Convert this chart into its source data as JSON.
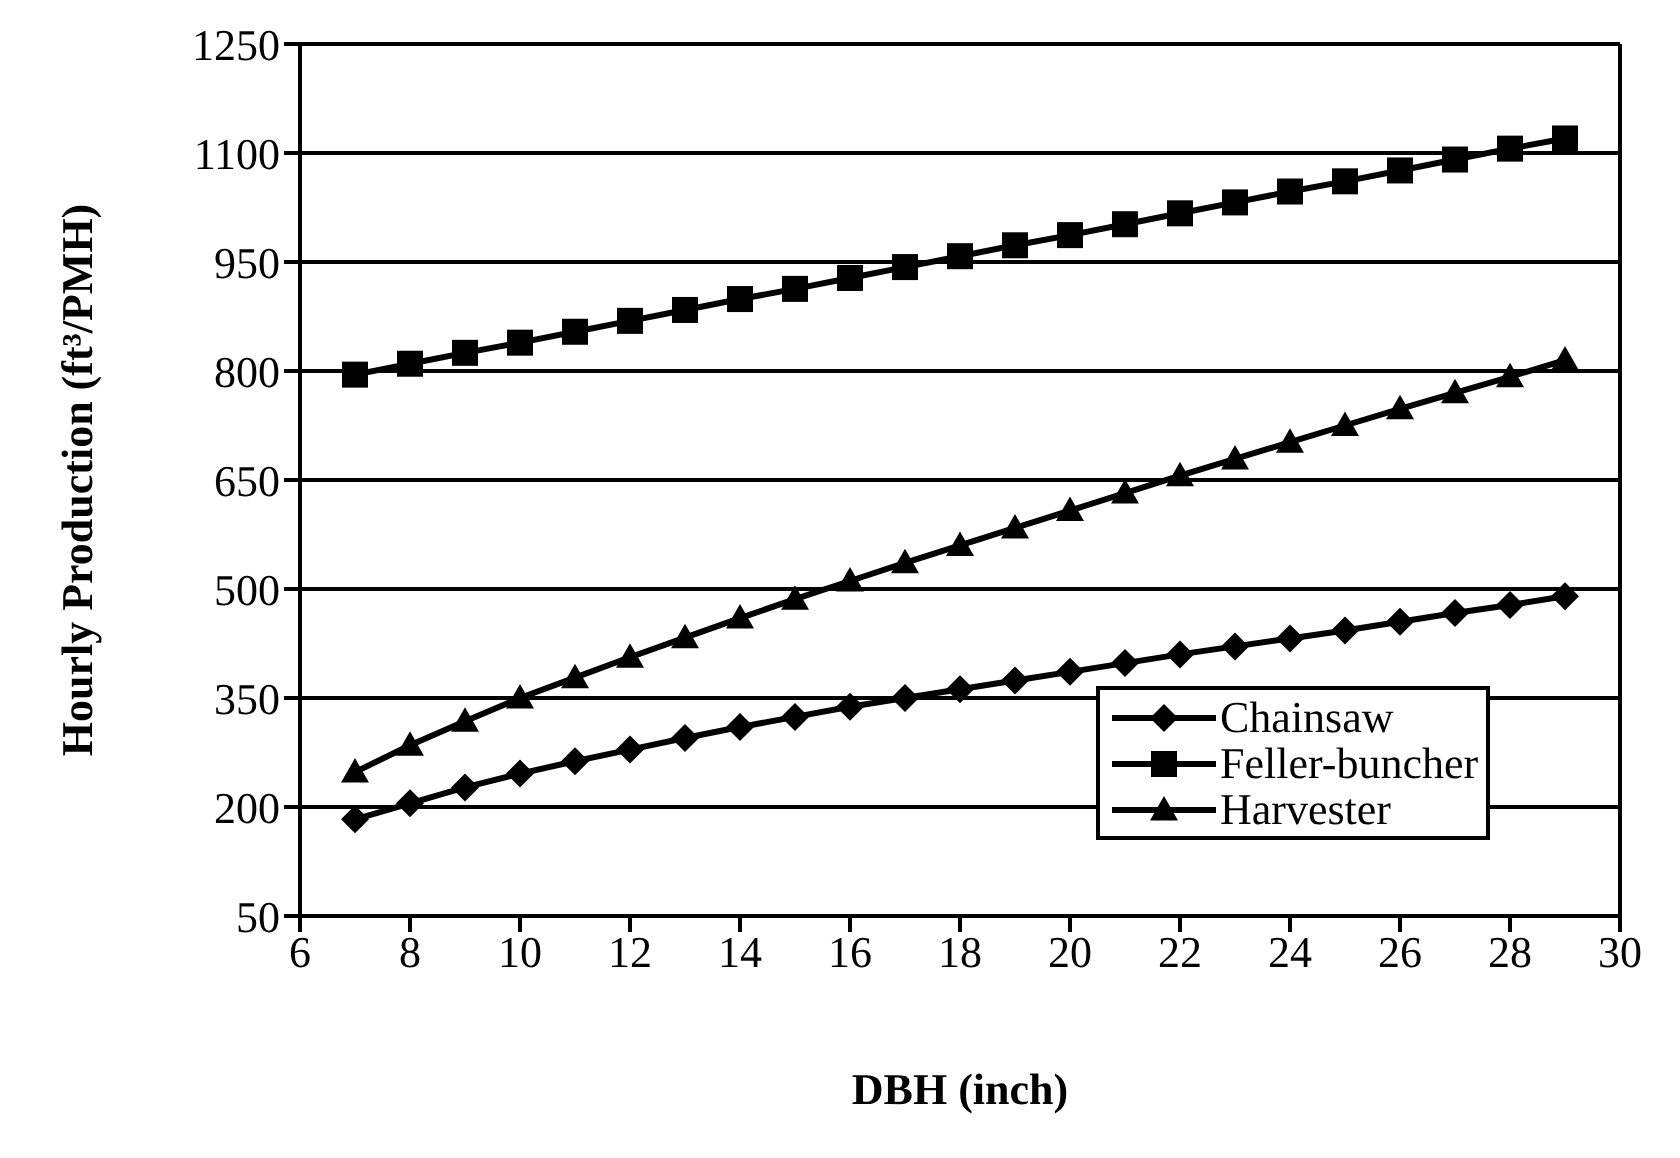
{
  "chart_data": {
    "type": "line",
    "xlabel": "DBH (inch)",
    "ylabel": "Hourly Production (ft³/PMH)",
    "x": [
      7,
      8,
      9,
      10,
      11,
      12,
      13,
      14,
      15,
      16,
      17,
      18,
      19,
      20,
      21,
      22,
      23,
      24,
      25,
      26,
      27,
      28,
      29
    ],
    "xlim": [
      6,
      30
    ],
    "xticks": [
      6,
      8,
      10,
      12,
      14,
      16,
      18,
      20,
      22,
      24,
      26,
      28,
      30
    ],
    "ylim": [
      50,
      1250
    ],
    "yticks": [
      50,
      200,
      350,
      500,
      650,
      800,
      950,
      1100,
      1250
    ],
    "grid": "y",
    "legend": "bottom right",
    "line_style": "solid",
    "series": [
      {
        "name": "Chainsaw",
        "color": "#000000",
        "marker": "diamond",
        "values": [
          183,
          205,
          227,
          246,
          263,
          279,
          295,
          310,
          324,
          338,
          350,
          362,
          374,
          386,
          398,
          410,
          421,
          432,
          443,
          455,
          467,
          478,
          490
        ]
      },
      {
        "name": "Feller-buncher",
        "color": "#000000",
        "marker": "square",
        "values": [
          795,
          810,
          825,
          839,
          854,
          869,
          884,
          899,
          913,
          928,
          943,
          958,
          973,
          987,
          1002,
          1017,
          1032,
          1047,
          1061,
          1076,
          1091,
          1106,
          1120
        ]
      },
      {
        "name": "Harvester",
        "color": "#000000",
        "marker": "triangle",
        "values": [
          248,
          285,
          318,
          350,
          378,
          406,
          433,
          460,
          486,
          511,
          536,
          560,
          584,
          608,
          632,
          656,
          679,
          702,
          725,
          748,
          770,
          792,
          815
        ]
      }
    ]
  }
}
